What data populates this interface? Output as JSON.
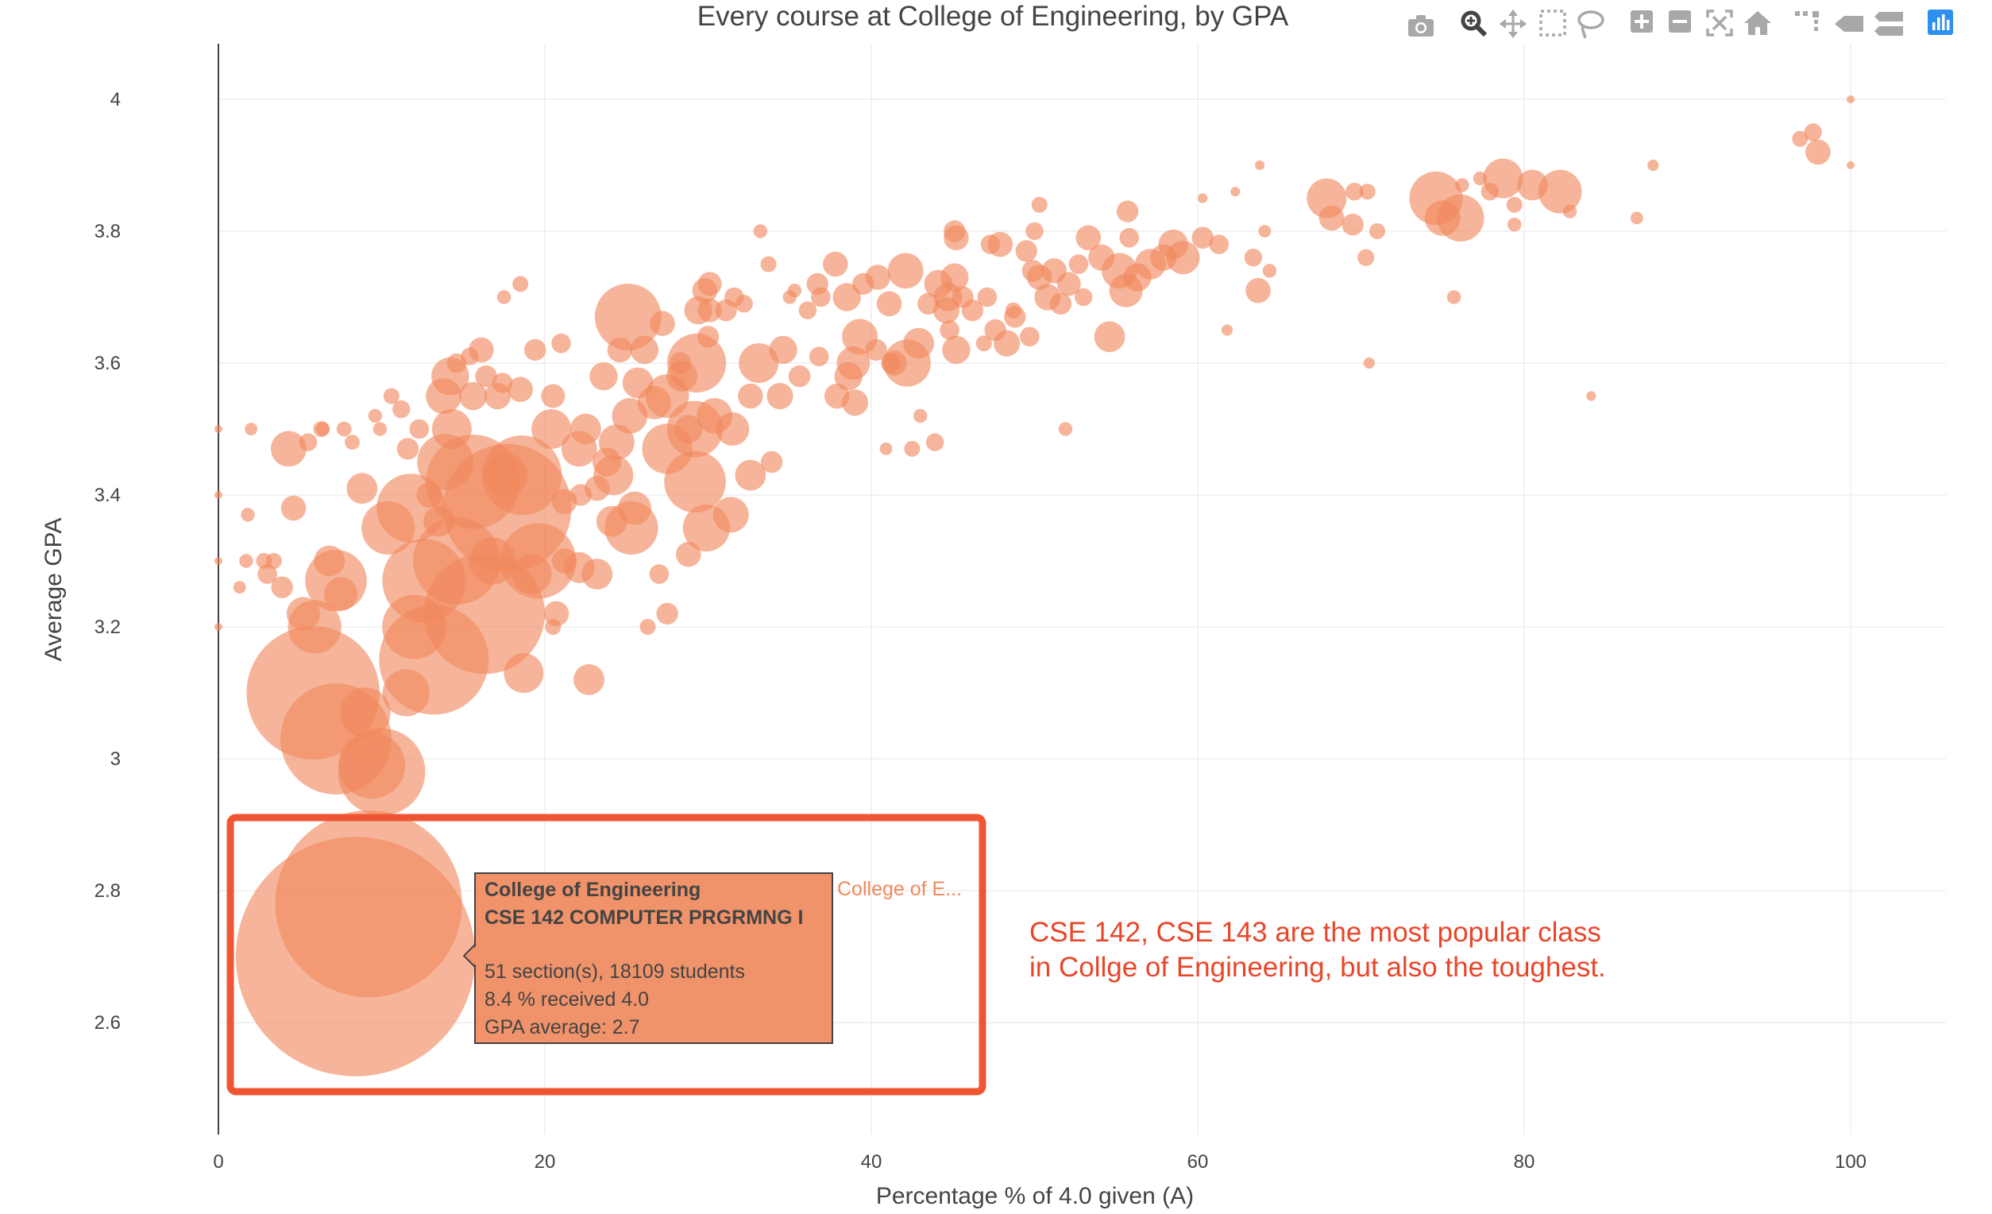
{
  "chart_data": {
    "type": "scatter",
    "title": "Every course at College of Engineering, by GPA",
    "xlabel": "Percentage % of 4.0 given (A)",
    "ylabel": "Average GPA",
    "xlim": [
      0,
      105.7
    ],
    "ylim": [
      2.46,
      4.09
    ],
    "xticks": [
      0,
      20,
      40,
      60,
      80,
      100
    ],
    "yticks": [
      2.6,
      2.8,
      3,
      3.2,
      3.4,
      3.6,
      3.8,
      4
    ],
    "grid": true,
    "legend": "none",
    "marker_color": "#F0885C",
    "points": [
      [
        8.4,
        2.7,
        18109
      ],
      [
        9.2,
        2.78,
        11000
      ],
      [
        5.8,
        3.1,
        5600
      ],
      [
        7.2,
        3.03,
        3900
      ],
      [
        10,
        2.98,
        2400
      ],
      [
        9.4,
        2.99,
        1400
      ],
      [
        13.2,
        3.15,
        3800
      ],
      [
        16.3,
        3.22,
        4600
      ],
      [
        17.7,
        3.38,
        5200
      ],
      [
        14.6,
        3.3,
        2400
      ],
      [
        12.6,
        3.27,
        2200
      ],
      [
        19.6,
        3.3,
        1800
      ],
      [
        11.8,
        3.38,
        1500
      ],
      [
        15.6,
        3.42,
        2800
      ],
      [
        18.6,
        3.43,
        2000
      ],
      [
        12,
        3.2,
        1300
      ],
      [
        13.9,
        3.45,
        1000
      ],
      [
        10.4,
        3.35,
        900
      ],
      [
        7.2,
        3.27,
        1200
      ],
      [
        9,
        3.07,
        800
      ],
      [
        5.9,
        3.2,
        900
      ],
      [
        11.5,
        3.1,
        700
      ],
      [
        25.1,
        3.67,
        1400
      ],
      [
        29.3,
        3.6,
        1100
      ],
      [
        29.2,
        3.42,
        1200
      ],
      [
        29.9,
        3.35,
        700
      ],
      [
        25.3,
        3.35,
        900
      ],
      [
        27.5,
        3.47,
        800
      ],
      [
        27.5,
        3.55,
        600
      ],
      [
        29.2,
        3.5,
        1000
      ],
      [
        24.2,
        3.43,
        500
      ],
      [
        22.1,
        3.47,
        400
      ],
      [
        20.4,
        3.5,
        500
      ],
      [
        22.7,
        3.12,
        300
      ],
      [
        22.1,
        3.29,
        300
      ],
      [
        25.2,
        3.52,
        400
      ],
      [
        19.2,
        3.28,
        500
      ],
      [
        16.8,
        3.3,
        700
      ],
      [
        18.7,
        3.13,
        500
      ],
      [
        17.6,
        3.43,
        600
      ],
      [
        14.3,
        3.5,
        500
      ],
      [
        13.8,
        3.55,
        400
      ],
      [
        14.2,
        3.58,
        450
      ],
      [
        8.8,
        3.41,
        300
      ],
      [
        4.3,
        3.47,
        400
      ],
      [
        7.5,
        3.25,
        350
      ],
      [
        4.6,
        3.38,
        200
      ],
      [
        5.2,
        3.22,
        350
      ],
      [
        6.8,
        3.3,
        300
      ],
      [
        3.9,
        3.26,
        150
      ],
      [
        2.8,
        3.3,
        80
      ],
      [
        1.7,
        3.3,
        60
      ],
      [
        1.8,
        3.37,
        60
      ],
      [
        2,
        3.5,
        50
      ],
      [
        0,
        3.5,
        20
      ],
      [
        0,
        3.4,
        20
      ],
      [
        0,
        3.3,
        20
      ],
      [
        0,
        3.2,
        20
      ],
      [
        3.4,
        3.3,
        80
      ],
      [
        5.5,
        3.48,
        100
      ],
      [
        6.3,
        3.5,
        80
      ],
      [
        7.7,
        3.5,
        70
      ],
      [
        9.9,
        3.5,
        60
      ],
      [
        11.6,
        3.47,
        150
      ],
      [
        12.3,
        3.5,
        120
      ],
      [
        12.9,
        3.4,
        200
      ],
      [
        13.5,
        3.36,
        300
      ],
      [
        15.6,
        3.55,
        250
      ],
      [
        16.1,
        3.62,
        200
      ],
      [
        17.1,
        3.55,
        220
      ],
      [
        18.5,
        3.56,
        200
      ],
      [
        19.4,
        3.62,
        150
      ],
      [
        20.5,
        3.55,
        180
      ],
      [
        21,
        3.63,
        120
      ],
      [
        22.5,
        3.5,
        300
      ],
      [
        23.6,
        3.58,
        250
      ],
      [
        23.8,
        3.45,
        260
      ],
      [
        24.6,
        3.62,
        200
      ],
      [
        26.7,
        3.54,
        350
      ],
      [
        28.4,
        3.58,
        300
      ],
      [
        28.8,
        3.5,
        250
      ],
      [
        30.4,
        3.52,
        400
      ],
      [
        31.5,
        3.5,
        350
      ],
      [
        32.6,
        3.55,
        200
      ],
      [
        33.1,
        3.6,
        500
      ],
      [
        33.9,
        3.45,
        150
      ],
      [
        34.6,
        3.62,
        250
      ],
      [
        34.4,
        3.55,
        220
      ],
      [
        35.6,
        3.58,
        150
      ],
      [
        36.8,
        3.61,
        120
      ],
      [
        37.9,
        3.55,
        200
      ],
      [
        38.6,
        3.58,
        250
      ],
      [
        39,
        3.54,
        220
      ],
      [
        38.9,
        3.6,
        350
      ],
      [
        39.3,
        3.64,
        400
      ],
      [
        40.3,
        3.62,
        150
      ],
      [
        41.4,
        3.6,
        200
      ],
      [
        42.2,
        3.6,
        700
      ],
      [
        42.9,
        3.63,
        300
      ],
      [
        44.7,
        3.7,
        250
      ],
      [
        45.6,
        3.7,
        150
      ],
      [
        45.1,
        3.73,
        250
      ],
      [
        47.1,
        3.7,
        120
      ],
      [
        47.6,
        3.65,
        150
      ],
      [
        48.3,
        3.63,
        220
      ],
      [
        48.8,
        3.67,
        150
      ],
      [
        49.7,
        3.64,
        120
      ],
      [
        47.9,
        3.78,
        200
      ],
      [
        49.5,
        3.77,
        150
      ],
      [
        49.9,
        3.74,
        150
      ],
      [
        50.3,
        3.73,
        200
      ],
      [
        50.8,
        3.7,
        220
      ],
      [
        51.2,
        3.74,
        200
      ],
      [
        51.6,
        3.69,
        150
      ],
      [
        52.1,
        3.72,
        180
      ],
      [
        52.7,
        3.75,
        120
      ],
      [
        53,
        3.7,
        100
      ],
      [
        53.3,
        3.79,
        200
      ],
      [
        54.1,
        3.76,
        220
      ],
      [
        55.2,
        3.74,
        400
      ],
      [
        55.6,
        3.71,
        350
      ],
      [
        56.3,
        3.73,
        250
      ],
      [
        57.1,
        3.75,
        300
      ],
      [
        57.9,
        3.76,
        220
      ],
      [
        58.5,
        3.78,
        280
      ],
      [
        59.1,
        3.76,
        350
      ],
      [
        55.8,
        3.79,
        120
      ],
      [
        55.7,
        3.83,
        150
      ],
      [
        54.6,
        3.64,
        300
      ],
      [
        60.3,
        3.79,
        150
      ],
      [
        61.3,
        3.78,
        120
      ],
      [
        63.7,
        3.71,
        200
      ],
      [
        63.4,
        3.76,
        100
      ],
      [
        64.4,
        3.74,
        60
      ],
      [
        64.1,
        3.8,
        50
      ],
      [
        60.3,
        3.85,
        30
      ],
      [
        62.3,
        3.86,
        30
      ],
      [
        61.8,
        3.65,
        40
      ],
      [
        63.8,
        3.9,
        30
      ],
      [
        67.9,
        3.85,
        500
      ],
      [
        68.2,
        3.82,
        200
      ],
      [
        69.5,
        3.81,
        150
      ],
      [
        69.6,
        3.86,
        100
      ],
      [
        70.4,
        3.86,
        80
      ],
      [
        70.3,
        3.76,
        90
      ],
      [
        70.5,
        3.6,
        40
      ],
      [
        71,
        3.8,
        80
      ],
      [
        74.6,
        3.85,
        900
      ],
      [
        75,
        3.82,
        400
      ],
      [
        76.1,
        3.82,
        700
      ],
      [
        77.3,
        3.88,
        60
      ],
      [
        75.7,
        3.7,
        60
      ],
      [
        76.2,
        3.87,
        60
      ],
      [
        77.9,
        3.86,
        100
      ],
      [
        78.7,
        3.88,
        500
      ],
      [
        79.4,
        3.84,
        80
      ],
      [
        80.5,
        3.87,
        300
      ],
      [
        82.2,
        3.86,
        600
      ],
      [
        79.4,
        3.81,
        60
      ],
      [
        82.8,
        3.83,
        60
      ],
      [
        86.9,
        3.82,
        50
      ],
      [
        87.9,
        3.9,
        40
      ],
      [
        84.1,
        3.55,
        30
      ],
      [
        96.9,
        3.94,
        80
      ],
      [
        97.7,
        3.95,
        100
      ],
      [
        98,
        3.92,
        200
      ],
      [
        100,
        4,
        20
      ],
      [
        100,
        3.9,
        20
      ],
      [
        31.4,
        3.37,
        400
      ],
      [
        32.6,
        3.43,
        300
      ],
      [
        28.8,
        3.31,
        200
      ],
      [
        27,
        3.28,
        120
      ],
      [
        27.5,
        3.22,
        150
      ],
      [
        26.3,
        3.2,
        80
      ],
      [
        21.2,
        3.3,
        200
      ],
      [
        20.7,
        3.22,
        200
      ],
      [
        20.5,
        3.2,
        80
      ],
      [
        21.2,
        3.39,
        200
      ],
      [
        22.2,
        3.4,
        150
      ],
      [
        23.2,
        3.41,
        200
      ],
      [
        24.1,
        3.36,
        300
      ],
      [
        23.2,
        3.28,
        300
      ],
      [
        25.5,
        3.38,
        350
      ],
      [
        24.4,
        3.48,
        400
      ],
      [
        25.7,
        3.57,
        300
      ],
      [
        26.1,
        3.62,
        250
      ],
      [
        27.2,
        3.66,
        200
      ],
      [
        28.3,
        3.6,
        150
      ],
      [
        29.4,
        3.68,
        250
      ],
      [
        29.8,
        3.71,
        200
      ],
      [
        30.1,
        3.72,
        180
      ],
      [
        31.1,
        3.68,
        150
      ],
      [
        31.6,
        3.7,
        120
      ],
      [
        32.2,
        3.69,
        100
      ],
      [
        33.2,
        3.8,
        60
      ],
      [
        33.7,
        3.75,
        80
      ],
      [
        35,
        3.7,
        60
      ],
      [
        35.3,
        3.71,
        60
      ],
      [
        36.1,
        3.68,
        100
      ],
      [
        36.7,
        3.72,
        150
      ],
      [
        36.9,
        3.7,
        120
      ],
      [
        37.8,
        3.75,
        200
      ],
      [
        38.5,
        3.7,
        250
      ],
      [
        39.5,
        3.72,
        150
      ],
      [
        40.4,
        3.73,
        200
      ],
      [
        41.1,
        3.69,
        200
      ],
      [
        42.1,
        3.74,
        400
      ],
      [
        43.5,
        3.69,
        150
      ],
      [
        44.1,
        3.72,
        250
      ],
      [
        44.6,
        3.68,
        220
      ],
      [
        44.8,
        3.65,
        120
      ],
      [
        45.2,
        3.62,
        250
      ],
      [
        46.2,
        3.68,
        150
      ],
      [
        46.9,
        3.63,
        80
      ],
      [
        47.3,
        3.78,
        120
      ],
      [
        48.7,
        3.68,
        80
      ],
      [
        41.2,
        3.6,
        120
      ],
      [
        40.9,
        3.47,
        50
      ],
      [
        42.5,
        3.47,
        80
      ],
      [
        43.9,
        3.48,
        100
      ],
      [
        43,
        3.52,
        60
      ],
      [
        45.2,
        3.79,
        200
      ],
      [
        45.1,
        3.8,
        150
      ],
      [
        50,
        3.8,
        100
      ],
      [
        50.3,
        3.84,
        80
      ],
      [
        51.9,
        3.5,
        60
      ],
      [
        30.1,
        3.68,
        180
      ],
      [
        30,
        3.64,
        150
      ],
      [
        18.5,
        3.72,
        80
      ],
      [
        17.5,
        3.7,
        60
      ],
      [
        14.6,
        3.6,
        120
      ],
      [
        15.4,
        3.61,
        100
      ],
      [
        16.4,
        3.58,
        150
      ],
      [
        17.4,
        3.57,
        130
      ],
      [
        11.2,
        3.53,
        100
      ],
      [
        10.6,
        3.55,
        80
      ],
      [
        9.6,
        3.52,
        60
      ],
      [
        8.2,
        3.48,
        70
      ],
      [
        3,
        3.28,
        120
      ],
      [
        1.3,
        3.26,
        50
      ],
      [
        6.4,
        3.5,
        60
      ]
    ],
    "annotation": "CSE 142, CSE 143 are the most popular class\nin Collge of Engineering, but also the toughest."
  },
  "hover": {
    "college": "College of Engineering",
    "course": "CSE 142 COMPUTER PRGRMNG I",
    "sections": "51 section(s), 18109 students",
    "received": "8.4 % received 4.0",
    "gpa": "GPA average: 2.7",
    "side_label": "College of E..."
  },
  "modebar": [
    "camera-icon",
    "zoom-icon",
    "pan-icon",
    "box-select-icon",
    "lasso-icon",
    "zoom-in-icon",
    "zoom-out-icon",
    "autoscale-icon",
    "home-icon",
    "spike-lines-icon",
    "hover-closest-icon",
    "hover-compare-icon",
    "plotly-logo-icon"
  ]
}
